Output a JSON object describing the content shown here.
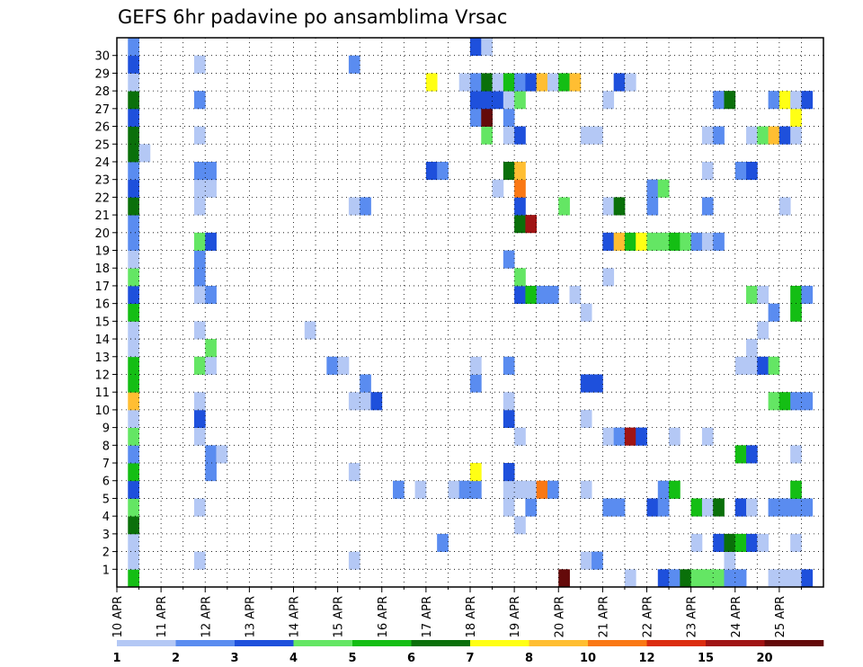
{
  "chart_data": {
    "type": "heatmap",
    "title": "GEFS 6hr padavine po ansamblima Vrsac",
    "x_range": [
      "10 APR 00Z",
      "25 APR 00Z"
    ],
    "x_step": "6 h",
    "x_tick_labels": [
      "10 APR",
      "11 APR",
      "12 APR",
      "13 APR",
      "14 APR",
      "15 APR",
      "16 APR",
      "17 APR",
      "18 APR",
      "19 APR",
      "20 APR",
      "21 APR",
      "22 APR",
      "23 APR",
      "24 APR",
      "25 APR"
    ],
    "y_range": [
      0,
      30
    ],
    "y_tick_labels": [
      "1",
      "2",
      "3",
      "4",
      "5",
      "6",
      "7",
      "8",
      "9",
      "10",
      "11",
      "12",
      "13",
      "14",
      "15",
      "16",
      "17",
      "18",
      "19",
      "20",
      "21",
      "22",
      "23",
      "24",
      "25",
      "26",
      "27",
      "28",
      "29",
      "30"
    ],
    "grid": true,
    "legend": {
      "placement": "bottom",
      "boundaries": [
        "1",
        "2",
        "3",
        "4",
        "5",
        "6",
        "7",
        "8",
        "10",
        "12",
        "15",
        "20"
      ],
      "colors": [
        "#b4c8f5",
        "#5a8cf0",
        "#1e50dc",
        "#64e664",
        "#14be14",
        "#0a700a",
        "#ffff14",
        "#ffbe32",
        "#fa7814",
        "#dc2d0f",
        "#a01414",
        "#640a0a"
      ]
    },
    "cells_note": "each cell: [time step index from 10 APR 00Z (6 h steps), ensemble member 0-30, color class index into legend.colors]",
    "cells": [
      [
        1,
        0,
        4
      ],
      [
        1,
        1,
        0
      ],
      [
        1,
        2,
        0
      ],
      [
        1,
        3,
        5
      ],
      [
        1,
        4,
        3
      ],
      [
        1,
        5,
        2
      ],
      [
        1,
        6,
        4
      ],
      [
        1,
        7,
        1
      ],
      [
        1,
        8,
        3
      ],
      [
        1,
        9,
        0
      ],
      [
        1,
        10,
        7
      ],
      [
        1,
        11,
        4
      ],
      [
        1,
        12,
        4
      ],
      [
        1,
        13,
        0
      ],
      [
        1,
        14,
        0
      ],
      [
        1,
        15,
        4
      ],
      [
        1,
        16,
        2
      ],
      [
        1,
        17,
        3
      ],
      [
        1,
        18,
        0
      ],
      [
        1,
        19,
        1
      ],
      [
        1,
        20,
        1
      ],
      [
        1,
        21,
        5
      ],
      [
        1,
        22,
        2
      ],
      [
        1,
        23,
        1
      ],
      [
        1,
        24,
        5
      ],
      [
        1,
        25,
        5
      ],
      [
        1,
        26,
        2
      ],
      [
        1,
        27,
        5
      ],
      [
        1,
        28,
        0
      ],
      [
        1,
        29,
        2
      ],
      [
        1,
        30,
        1
      ],
      [
        2,
        24,
        0
      ],
      [
        7,
        1,
        0
      ],
      [
        7,
        4,
        0
      ],
      [
        7,
        8,
        0
      ],
      [
        7,
        9,
        2
      ],
      [
        7,
        10,
        0
      ],
      [
        7,
        12,
        3
      ],
      [
        7,
        14,
        0
      ],
      [
        7,
        16,
        0
      ],
      [
        7,
        17,
        1
      ],
      [
        7,
        18,
        1
      ],
      [
        7,
        19,
        3
      ],
      [
        7,
        21,
        0
      ],
      [
        7,
        22,
        0
      ],
      [
        7,
        23,
        1
      ],
      [
        7,
        25,
        0
      ],
      [
        7,
        27,
        1
      ],
      [
        7,
        29,
        0
      ],
      [
        8,
        6,
        1
      ],
      [
        8,
        7,
        1
      ],
      [
        8,
        12,
        0
      ],
      [
        8,
        13,
        3
      ],
      [
        8,
        16,
        1
      ],
      [
        8,
        19,
        2
      ],
      [
        8,
        22,
        0
      ],
      [
        8,
        23,
        1
      ],
      [
        9,
        7,
        0
      ],
      [
        17,
        14,
        0
      ],
      [
        19,
        12,
        1
      ],
      [
        20,
        12,
        0
      ],
      [
        21,
        1,
        0
      ],
      [
        21,
        6,
        0
      ],
      [
        21,
        10,
        0
      ],
      [
        21,
        21,
        0
      ],
      [
        21,
        29,
        1
      ],
      [
        22,
        10,
        0
      ],
      [
        22,
        11,
        1
      ],
      [
        22,
        21,
        1
      ],
      [
        23,
        10,
        2
      ],
      [
        25,
        5,
        1
      ],
      [
        27,
        5,
        0
      ],
      [
        28,
        28,
        6
      ],
      [
        28,
        23,
        2
      ],
      [
        29,
        2,
        1
      ],
      [
        29,
        23,
        1
      ],
      [
        30,
        5,
        0
      ],
      [
        31,
        5,
        1
      ],
      [
        31,
        28,
        0
      ],
      [
        32,
        5,
        1
      ],
      [
        32,
        6,
        6
      ],
      [
        32,
        11,
        1
      ],
      [
        32,
        12,
        0
      ],
      [
        32,
        26,
        1
      ],
      [
        32,
        27,
        2
      ],
      [
        32,
        28,
        1
      ],
      [
        32,
        30,
        2
      ],
      [
        33,
        25,
        3
      ],
      [
        33,
        26,
        11
      ],
      [
        33,
        27,
        2
      ],
      [
        33,
        28,
        5
      ],
      [
        33,
        30,
        0
      ],
      [
        34,
        22,
        0
      ],
      [
        34,
        27,
        2
      ],
      [
        34,
        28,
        0
      ],
      [
        35,
        4,
        0
      ],
      [
        35,
        5,
        0
      ],
      [
        35,
        6,
        2
      ],
      [
        35,
        9,
        2
      ],
      [
        35,
        10,
        0
      ],
      [
        35,
        12,
        1
      ],
      [
        35,
        18,
        1
      ],
      [
        35,
        23,
        5
      ],
      [
        35,
        25,
        0
      ],
      [
        35,
        26,
        1
      ],
      [
        35,
        27,
        0
      ],
      [
        35,
        28,
        4
      ],
      [
        36,
        3,
        0
      ],
      [
        36,
        5,
        0
      ],
      [
        36,
        8,
        0
      ],
      [
        36,
        16,
        2
      ],
      [
        36,
        17,
        3
      ],
      [
        36,
        20,
        5
      ],
      [
        36,
        21,
        2
      ],
      [
        36,
        22,
        8
      ],
      [
        36,
        23,
        7
      ],
      [
        36,
        25,
        2
      ],
      [
        36,
        27,
        3
      ],
      [
        36,
        28,
        1
      ],
      [
        37,
        4,
        1
      ],
      [
        37,
        5,
        0
      ],
      [
        37,
        16,
        4
      ],
      [
        37,
        20,
        10
      ],
      [
        37,
        28,
        2
      ],
      [
        38,
        5,
        8
      ],
      [
        38,
        16,
        1
      ],
      [
        38,
        28,
        7
      ],
      [
        39,
        5,
        1
      ],
      [
        39,
        16,
        1
      ],
      [
        39,
        28,
        0
      ],
      [
        40,
        0,
        11
      ],
      [
        40,
        21,
        3
      ],
      [
        40,
        28,
        4
      ],
      [
        41,
        16,
        0
      ],
      [
        41,
        28,
        7
      ],
      [
        42,
        1,
        0
      ],
      [
        42,
        5,
        0
      ],
      [
        42,
        9,
        0
      ],
      [
        42,
        11,
        2
      ],
      [
        42,
        15,
        0
      ],
      [
        42,
        25,
        0
      ],
      [
        43,
        1,
        1
      ],
      [
        43,
        11,
        2
      ],
      [
        43,
        25,
        0
      ],
      [
        44,
        4,
        1
      ],
      [
        44,
        8,
        0
      ],
      [
        44,
        17,
        0
      ],
      [
        44,
        19,
        2
      ],
      [
        44,
        21,
        0
      ],
      [
        44,
        27,
        0
      ],
      [
        45,
        4,
        1
      ],
      [
        45,
        8,
        1
      ],
      [
        45,
        19,
        7
      ],
      [
        45,
        21,
        5
      ],
      [
        45,
        28,
        2
      ],
      [
        46,
        0,
        0
      ],
      [
        46,
        8,
        10
      ],
      [
        46,
        19,
        4
      ],
      [
        46,
        28,
        0
      ],
      [
        47,
        8,
        2
      ],
      [
        47,
        19,
        6
      ],
      [
        48,
        4,
        2
      ],
      [
        48,
        19,
        3
      ],
      [
        48,
        21,
        1
      ],
      [
        48,
        22,
        1
      ],
      [
        49,
        0,
        2
      ],
      [
        49,
        4,
        1
      ],
      [
        49,
        5,
        1
      ],
      [
        49,
        19,
        3
      ],
      [
        49,
        22,
        3
      ],
      [
        50,
        0,
        1
      ],
      [
        50,
        5,
        4
      ],
      [
        50,
        8,
        0
      ],
      [
        50,
        19,
        4
      ],
      [
        51,
        0,
        5
      ],
      [
        51,
        19,
        3
      ],
      [
        52,
        0,
        3
      ],
      [
        52,
        2,
        0
      ],
      [
        52,
        4,
        4
      ],
      [
        52,
        19,
        1
      ],
      [
        53,
        0,
        3
      ],
      [
        53,
        4,
        0
      ],
      [
        53,
        8,
        0
      ],
      [
        53,
        19,
        0
      ],
      [
        53,
        21,
        1
      ],
      [
        53,
        23,
        0
      ],
      [
        53,
        25,
        0
      ],
      [
        54,
        0,
        3
      ],
      [
        54,
        2,
        2
      ],
      [
        54,
        4,
        5
      ],
      [
        54,
        19,
        1
      ],
      [
        54,
        25,
        1
      ],
      [
        54,
        27,
        1
      ],
      [
        55,
        0,
        1
      ],
      [
        55,
        1,
        0
      ],
      [
        55,
        2,
        5
      ],
      [
        55,
        27,
        5
      ],
      [
        56,
        0,
        1
      ],
      [
        56,
        2,
        4
      ],
      [
        56,
        4,
        2
      ],
      [
        56,
        7,
        4
      ],
      [
        56,
        12,
        0
      ],
      [
        56,
        23,
        1
      ],
      [
        57,
        2,
        2
      ],
      [
        57,
        4,
        0
      ],
      [
        57,
        7,
        2
      ],
      [
        57,
        12,
        0
      ],
      [
        57,
        13,
        0
      ],
      [
        57,
        16,
        3
      ],
      [
        57,
        23,
        2
      ],
      [
        57,
        25,
        0
      ],
      [
        58,
        2,
        0
      ],
      [
        58,
        12,
        2
      ],
      [
        58,
        14,
        0
      ],
      [
        58,
        16,
        0
      ],
      [
        58,
        25,
        3
      ],
      [
        59,
        0,
        0
      ],
      [
        59,
        4,
        1
      ],
      [
        59,
        10,
        3
      ],
      [
        59,
        12,
        3
      ],
      [
        59,
        15,
        1
      ],
      [
        59,
        25,
        7
      ],
      [
        59,
        27,
        1
      ],
      [
        60,
        0,
        0
      ],
      [
        60,
        4,
        1
      ],
      [
        60,
        10,
        4
      ],
      [
        60,
        21,
        0
      ],
      [
        60,
        25,
        2
      ],
      [
        60,
        27,
        6
      ],
      [
        61,
        0,
        0
      ],
      [
        61,
        2,
        0
      ],
      [
        61,
        4,
        1
      ],
      [
        61,
        5,
        4
      ],
      [
        61,
        7,
        0
      ],
      [
        61,
        10,
        1
      ],
      [
        61,
        15,
        4
      ],
      [
        61,
        16,
        4
      ],
      [
        61,
        25,
        0
      ],
      [
        61,
        26,
        6
      ],
      [
        61,
        27,
        0
      ],
      [
        62,
        0,
        2
      ],
      [
        62,
        4,
        1
      ],
      [
        62,
        10,
        1
      ],
      [
        62,
        16,
        1
      ],
      [
        62,
        27,
        2
      ]
    ]
  }
}
